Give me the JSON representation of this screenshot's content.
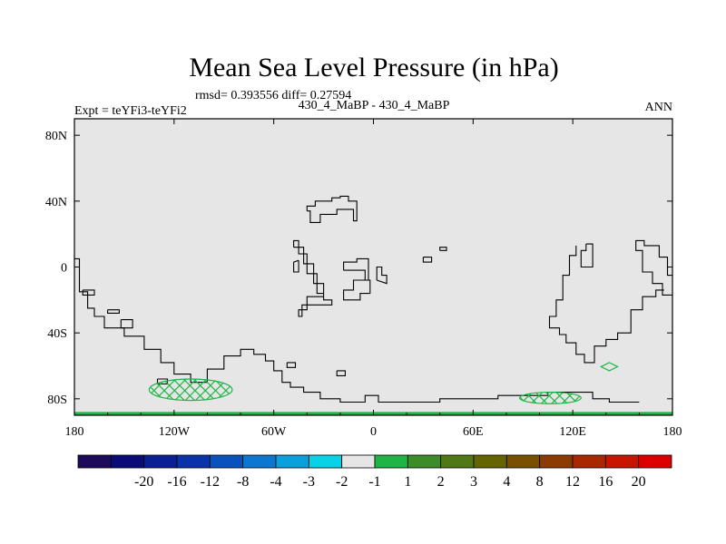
{
  "chart_data": {
    "type": "heatmap",
    "title": "Mean Sea Level Pressure (in hPa)",
    "stats": "rmsd= 0.393556 diff= 0.27594",
    "left_label": "Expt = teYFi3-teYFi2",
    "center_label": "430_4_MaBP - 430_4_MaBP",
    "right_label": "ANN",
    "projection": "cylindrical equidistant",
    "x_range": [
      -180,
      180
    ],
    "y_range": [
      -90,
      90
    ],
    "x_ticks": [
      {
        "value": -180,
        "label": "180"
      },
      {
        "value": -120,
        "label": "120W"
      },
      {
        "value": -60,
        "label": "60W"
      },
      {
        "value": 0,
        "label": "0"
      },
      {
        "value": 60,
        "label": "60E"
      },
      {
        "value": 120,
        "label": "120E"
      },
      {
        "value": 180,
        "label": "180"
      }
    ],
    "y_ticks": [
      {
        "value": 80,
        "label": "80N"
      },
      {
        "value": 40,
        "label": "40N"
      },
      {
        "value": 0,
        "label": "0"
      },
      {
        "value": -40,
        "label": "40S"
      },
      {
        "value": -80,
        "label": "80S"
      }
    ],
    "background_bin": "-1 to 1",
    "background_color": "#e6e6e6",
    "colorbar": {
      "colors": [
        "#1e0a5a",
        "#0a0a78",
        "#0a1e96",
        "#0a32aa",
        "#0a50be",
        "#0a78d2",
        "#0aa0dc",
        "#0ad2e6",
        "#e6e6e6",
        "#1eb446",
        "#3c8c28",
        "#507814",
        "#646400",
        "#785000",
        "#8c3c00",
        "#aa2800",
        "#c81400",
        "#dc0000"
      ],
      "labels": [
        "-20",
        "-16",
        "-12",
        "-8",
        "-4",
        "-3",
        "-2",
        "-1",
        "1",
        "2",
        "3",
        "4",
        "8",
        "12",
        "16",
        "20"
      ]
    },
    "positive_regions": [
      {
        "bin": "1 to 2",
        "color": "#1eb446",
        "lon": [
          -135,
          -85
        ],
        "lat": [
          -81,
          -68
        ],
        "description": "hatched positive anomaly near Antarctic coast south of the Pacific"
      },
      {
        "bin": "1 to 2",
        "color": "#1eb446",
        "lon": [
          88,
          125
        ],
        "lat": [
          -83,
          -76
        ],
        "description": "hatched positive anomaly near East Antarctic coast"
      },
      {
        "bin": "1 to 2",
        "color": "#1eb446",
        "lon": [
          137,
          147
        ],
        "lat": [
          -63,
          -58
        ],
        "description": "small contour south of Australia"
      },
      {
        "bin": "1 to 2",
        "color": "#1eb446",
        "lon": [
          -180,
          180
        ],
        "lat": [
          -90,
          -88
        ],
        "description": "thin band along south pole edge"
      }
    ],
    "coastlines": [
      [
        [
          -180,
          5
        ],
        [
          -177,
          5
        ],
        [
          -177,
          -15
        ],
        [
          -172,
          -15
        ],
        [
          -172,
          -25
        ],
        [
          -168,
          -25
        ],
        [
          -168,
          -30
        ],
        [
          -162,
          -30
        ],
        [
          -162,
          -37
        ],
        [
          -150,
          -37
        ],
        [
          -150,
          -42
        ],
        [
          -138,
          -42
        ],
        [
          -138,
          -50
        ],
        [
          -128,
          -50
        ],
        [
          -128,
          -58
        ],
        [
          -120,
          -58
        ],
        [
          -120,
          -65
        ],
        [
          -110,
          -65
        ],
        [
          -110,
          -70
        ],
        [
          -100,
          -70
        ],
        [
          -100,
          -62
        ],
        [
          -90,
          -62
        ],
        [
          -90,
          -54
        ],
        [
          -80,
          -54
        ],
        [
          -80,
          -50
        ],
        [
          -72,
          -50
        ],
        [
          -72,
          -53
        ],
        [
          -65,
          -53
        ],
        [
          -65,
          -57
        ],
        [
          -60,
          -57
        ],
        [
          -60,
          -63
        ],
        [
          -55,
          -63
        ],
        [
          -55,
          -70
        ],
        [
          -50,
          -70
        ],
        [
          -50,
          -73
        ],
        [
          -42,
          -73
        ],
        [
          -42,
          -76
        ],
        [
          -32,
          -76
        ],
        [
          -32,
          -80
        ],
        [
          -20,
          -80
        ],
        [
          -20,
          -82
        ],
        [
          -5,
          -82
        ],
        [
          -5,
          -78
        ],
        [
          3,
          -78
        ],
        [
          3,
          -82
        ],
        [
          40,
          -82
        ],
        [
          40,
          -80
        ],
        [
          75,
          -80
        ],
        [
          75,
          -78
        ],
        [
          105,
          -78
        ],
        [
          105,
          -76
        ],
        [
          132,
          -76
        ],
        [
          132,
          -80
        ],
        [
          142,
          -80
        ],
        [
          142,
          -82
        ],
        [
          160,
          -82
        ]
      ],
      [
        [
          180,
          -17
        ],
        [
          174,
          -17
        ],
        [
          174,
          -10
        ],
        [
          168,
          -10
        ],
        [
          168,
          -3
        ],
        [
          162,
          -3
        ],
        [
          162,
          10
        ],
        [
          158,
          10
        ],
        [
          158,
          16
        ],
        [
          163,
          16
        ],
        [
          163,
          13
        ],
        [
          172,
          13
        ],
        [
          172,
          6
        ],
        [
          177,
          6
        ],
        [
          177,
          -5
        ],
        [
          180,
          -5
        ]
      ],
      [
        [
          -40,
          34
        ],
        [
          -40,
          37
        ],
        [
          -35,
          37
        ],
        [
          -35,
          40
        ],
        [
          -25,
          40
        ],
        [
          -25,
          42
        ],
        [
          -20,
          42
        ],
        [
          -20,
          43
        ],
        [
          -15,
          43
        ],
        [
          -15,
          40
        ],
        [
          -10,
          40
        ],
        [
          -10,
          28
        ],
        [
          -12,
          28
        ],
        [
          -12,
          35
        ],
        [
          -22,
          35
        ],
        [
          -22,
          32
        ],
        [
          -32,
          32
        ],
        [
          -32,
          27
        ],
        [
          -38,
          27
        ],
        [
          -38,
          34
        ],
        [
          -40,
          34
        ]
      ],
      [
        [
          -48,
          12
        ],
        [
          -48,
          16
        ],
        [
          -45,
          16
        ],
        [
          -45,
          8
        ],
        [
          -40,
          8
        ],
        [
          -40,
          -4
        ],
        [
          -34,
          -4
        ],
        [
          -34,
          -16
        ],
        [
          -30,
          -16
        ],
        [
          -30,
          -20
        ],
        [
          -25,
          -20
        ],
        [
          -25,
          -23
        ],
        [
          -43,
          -23
        ],
        [
          -43,
          -30
        ],
        [
          -45,
          -30
        ],
        [
          -45,
          -26
        ],
        [
          -40,
          -26
        ],
        [
          -40,
          -18
        ],
        [
          -30,
          -18
        ],
        [
          -30,
          -10
        ],
        [
          -36,
          -10
        ],
        [
          -36,
          2
        ],
        [
          -42,
          2
        ],
        [
          -42,
          12
        ],
        [
          -48,
          12
        ]
      ],
      [
        [
          -45,
          4
        ],
        [
          -45,
          -3
        ],
        [
          -48,
          -3
        ],
        [
          -48,
          3
        ],
        [
          -45,
          4
        ]
      ],
      [
        [
          -18,
          -2
        ],
        [
          -18,
          3
        ],
        [
          -10,
          3
        ],
        [
          -10,
          5
        ],
        [
          -3,
          5
        ],
        [
          -3,
          -8
        ],
        [
          -12,
          -8
        ],
        [
          -12,
          -14
        ],
        [
          -18,
          -14
        ],
        [
          -18,
          -20
        ],
        [
          -8,
          -20
        ],
        [
          -8,
          -16
        ],
        [
          -2,
          -16
        ],
        [
          -2,
          -8
        ],
        [
          -5,
          -8
        ],
        [
          -5,
          -2
        ],
        [
          -18,
          -2
        ]
      ],
      [
        [
          2,
          -8
        ],
        [
          2,
          0
        ],
        [
          5,
          0
        ],
        [
          5,
          -5
        ],
        [
          8,
          -5
        ],
        [
          8,
          -10
        ],
        [
          2,
          -8
        ]
      ],
      [
        [
          -160,
          -26
        ],
        [
          -160,
          -28
        ],
        [
          -153,
          -28
        ],
        [
          -153,
          -26
        ],
        [
          -160,
          -26
        ]
      ],
      [
        [
          -152,
          -32
        ],
        [
          -152,
          -37
        ],
        [
          -145,
          -37
        ],
        [
          -145,
          -32
        ],
        [
          -152,
          -32
        ]
      ],
      [
        [
          -175,
          -14
        ],
        [
          -175,
          -17
        ],
        [
          -168,
          -17
        ],
        [
          -168,
          -14
        ],
        [
          -175,
          -14
        ]
      ],
      [
        [
          40,
          10
        ],
        [
          40,
          12
        ],
        [
          44,
          12
        ],
        [
          44,
          10
        ],
        [
          40,
          10
        ]
      ],
      [
        [
          30,
          6
        ],
        [
          30,
          3
        ],
        [
          35,
          3
        ],
        [
          35,
          6
        ],
        [
          30,
          6
        ]
      ],
      [
        [
          -52,
          -58
        ],
        [
          -52,
          -61
        ],
        [
          -47,
          -61
        ],
        [
          -47,
          -58
        ],
        [
          -52,
          -58
        ]
      ],
      [
        [
          -22,
          -63
        ],
        [
          -22,
          -66
        ],
        [
          -17,
          -66
        ],
        [
          -17,
          -63
        ],
        [
          -22,
          -63
        ]
      ],
      [
        [
          -130,
          -68
        ],
        [
          -130,
          -71
        ],
        [
          -124,
          -71
        ],
        [
          -124,
          -68
        ],
        [
          -130,
          -68
        ]
      ],
      [
        [
          122,
          13
        ],
        [
          122,
          7
        ],
        [
          118,
          7
        ],
        [
          118,
          -5
        ],
        [
          114,
          -5
        ],
        [
          114,
          -20
        ],
        [
          110,
          -20
        ],
        [
          110,
          -30
        ],
        [
          106,
          -30
        ],
        [
          106,
          -37
        ],
        [
          112,
          -37
        ],
        [
          112,
          -41
        ],
        [
          116,
          -41
        ],
        [
          116,
          -46
        ],
        [
          122,
          -46
        ],
        [
          122,
          -53
        ],
        [
          127,
          -53
        ],
        [
          127,
          -58
        ],
        [
          133,
          -58
        ],
        [
          133,
          -48
        ],
        [
          140,
          -48
        ],
        [
          140,
          -44
        ],
        [
          147,
          -44
        ],
        [
          147,
          -40
        ],
        [
          155,
          -40
        ],
        [
          155,
          -26
        ],
        [
          162,
          -26
        ],
        [
          162,
          -18
        ],
        [
          170,
          -18
        ],
        [
          170,
          -14
        ],
        [
          175,
          -14
        ]
      ],
      [
        [
          128,
          14
        ],
        [
          128,
          10
        ],
        [
          125,
          10
        ],
        [
          125,
          0
        ],
        [
          132,
          0
        ],
        [
          132,
          14
        ],
        [
          128,
          14
        ]
      ]
    ]
  }
}
